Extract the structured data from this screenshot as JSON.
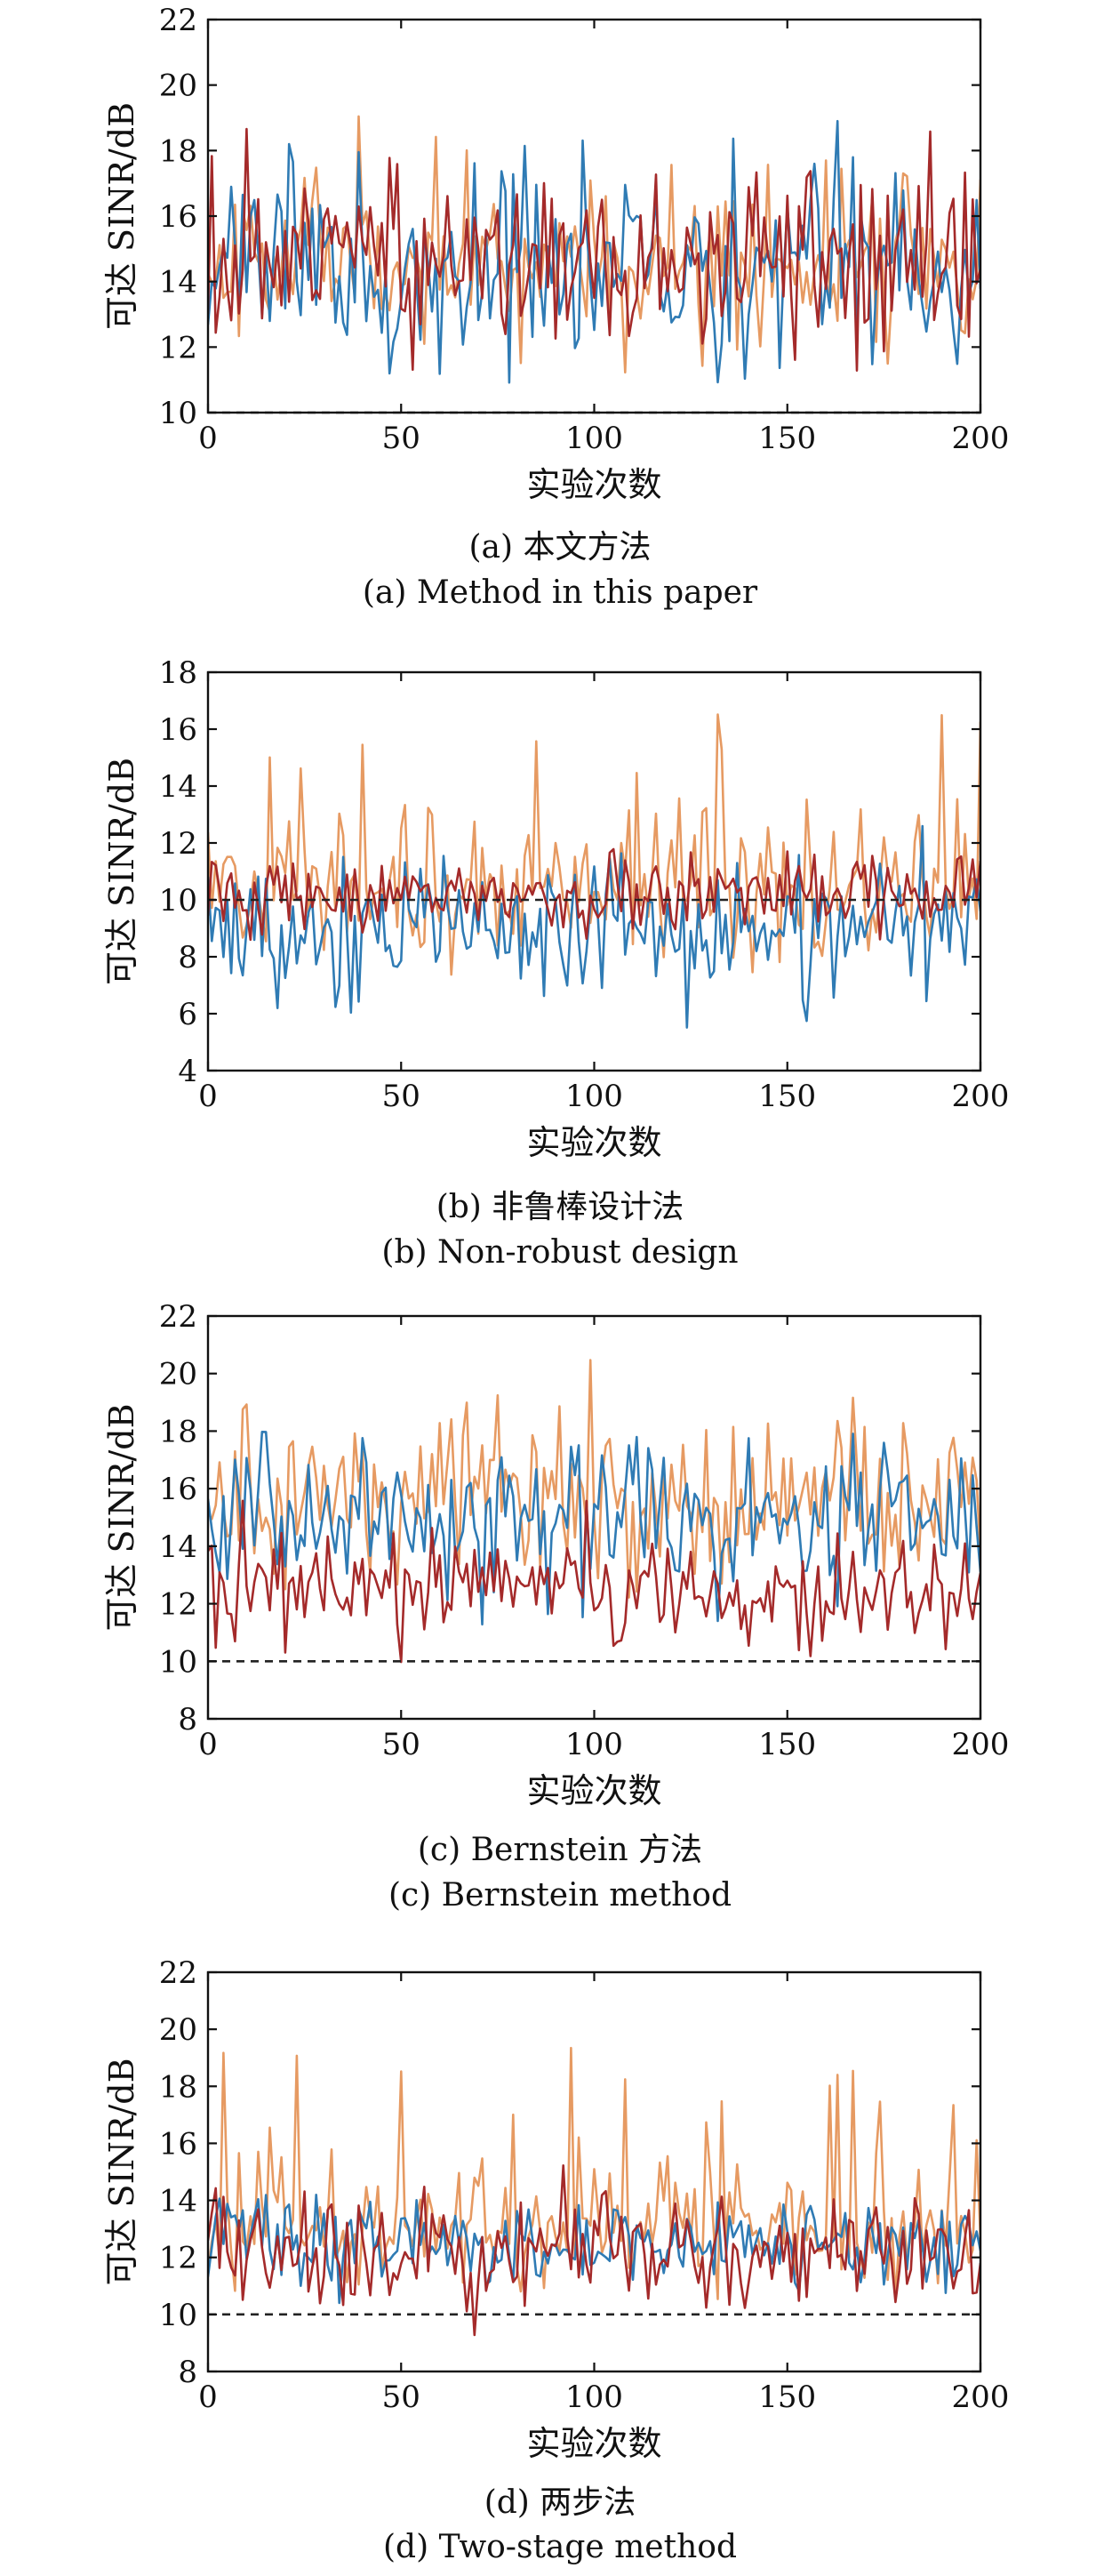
{
  "figure": {
    "panels": [
      {
        "caption_cn": "(a) 本文方法",
        "caption_en": "(a) Method in this paper"
      },
      {
        "caption_cn": "(b) 非鲁棒设计法",
        "caption_en": "(b) Non-robust design"
      },
      {
        "caption_cn": "(c) Bernstein 方法",
        "caption_en": "(c) Bernstein method"
      },
      {
        "caption_cn": "(d) 两步法",
        "caption_en": "(d) Two-stage method"
      }
    ]
  },
  "chart_data": [
    {
      "type": "line",
      "xlabel": "实验次数",
      "ylabel": "可达 SINR/dB",
      "xlim": [
        0,
        200
      ],
      "ylim": [
        10,
        22
      ],
      "xticks": [
        0,
        50,
        100,
        150,
        200
      ],
      "yticks": [
        10,
        12,
        14,
        16,
        18,
        20,
        22
      ],
      "threshold": 10,
      "colors": {
        "blue": "#2f7bb4",
        "orange": "#e69a62",
        "red": "#a42a2a",
        "threshold": "#222222"
      },
      "grid": false
    },
    {
      "type": "line",
      "xlabel": "实验次数",
      "ylabel": "可达 SINR/dB",
      "xlim": [
        0,
        200
      ],
      "ylim": [
        4,
        18
      ],
      "xticks": [
        0,
        50,
        100,
        150,
        200
      ],
      "yticks": [
        4,
        6,
        8,
        10,
        12,
        14,
        16,
        18
      ],
      "threshold": 10,
      "colors": {
        "blue": "#2f7bb4",
        "orange": "#e69a62",
        "red": "#a42a2a",
        "threshold": "#222222"
      },
      "grid": false
    },
    {
      "type": "line",
      "xlabel": "实验次数",
      "ylabel": "可达 SINR/dB",
      "xlim": [
        0,
        200
      ],
      "ylim": [
        8,
        22
      ],
      "xticks": [
        0,
        50,
        100,
        150,
        200
      ],
      "yticks": [
        8,
        10,
        12,
        14,
        16,
        18,
        20,
        22
      ],
      "threshold": 10,
      "colors": {
        "blue": "#2f7bb4",
        "orange": "#e69a62",
        "red": "#a42a2a",
        "threshold": "#222222"
      },
      "grid": false
    },
    {
      "type": "line",
      "xlabel": "实验次数",
      "ylabel": "可达 SINR/dB",
      "xlim": [
        0,
        200
      ],
      "ylim": [
        8,
        22
      ],
      "xticks": [
        0,
        50,
        100,
        150,
        200
      ],
      "yticks": [
        8,
        10,
        12,
        14,
        16,
        18,
        20,
        22
      ],
      "threshold": 10,
      "colors": {
        "blue": "#2f7bb4",
        "orange": "#e69a62",
        "red": "#a42a2a",
        "threshold": "#222222"
      },
      "grid": false
    }
  ]
}
